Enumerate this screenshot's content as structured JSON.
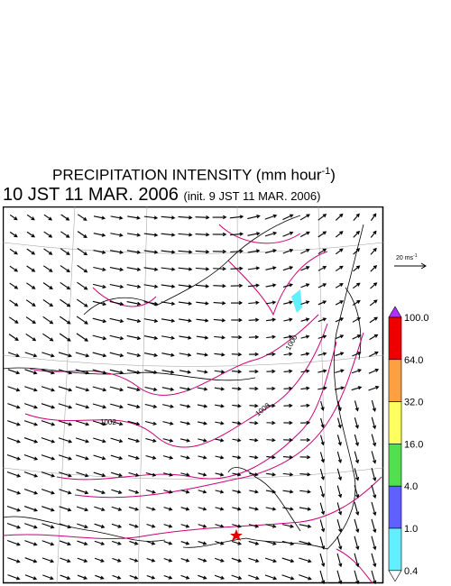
{
  "header": {
    "title": "PRECIPITATION INTENSITY (mm hour",
    "title_sup": "-1",
    "title_end": ")",
    "valid_time": "10 JST 11 MAR. 2006",
    "init_time": "(init. 9 JST 11 MAR. 2006)"
  },
  "legend": {
    "scale_label": "20 ms",
    "scale_sup": "-1",
    "colorbar": {
      "labels": [
        "100.0",
        "64.0",
        "32.0",
        "16.0",
        "4.0",
        "1.0",
        "0.4"
      ],
      "colors": [
        "#ee0000",
        "#ffa040",
        "#ffff60",
        "#50e050",
        "#6060ff",
        "#60f0ff"
      ],
      "over_color": "#b030ff",
      "under_color": "#ffffff"
    }
  },
  "map": {
    "isobar_labels": [
      "1002",
      "1000",
      "1000"
    ],
    "isobar_color": "#cc0077"
  }
}
